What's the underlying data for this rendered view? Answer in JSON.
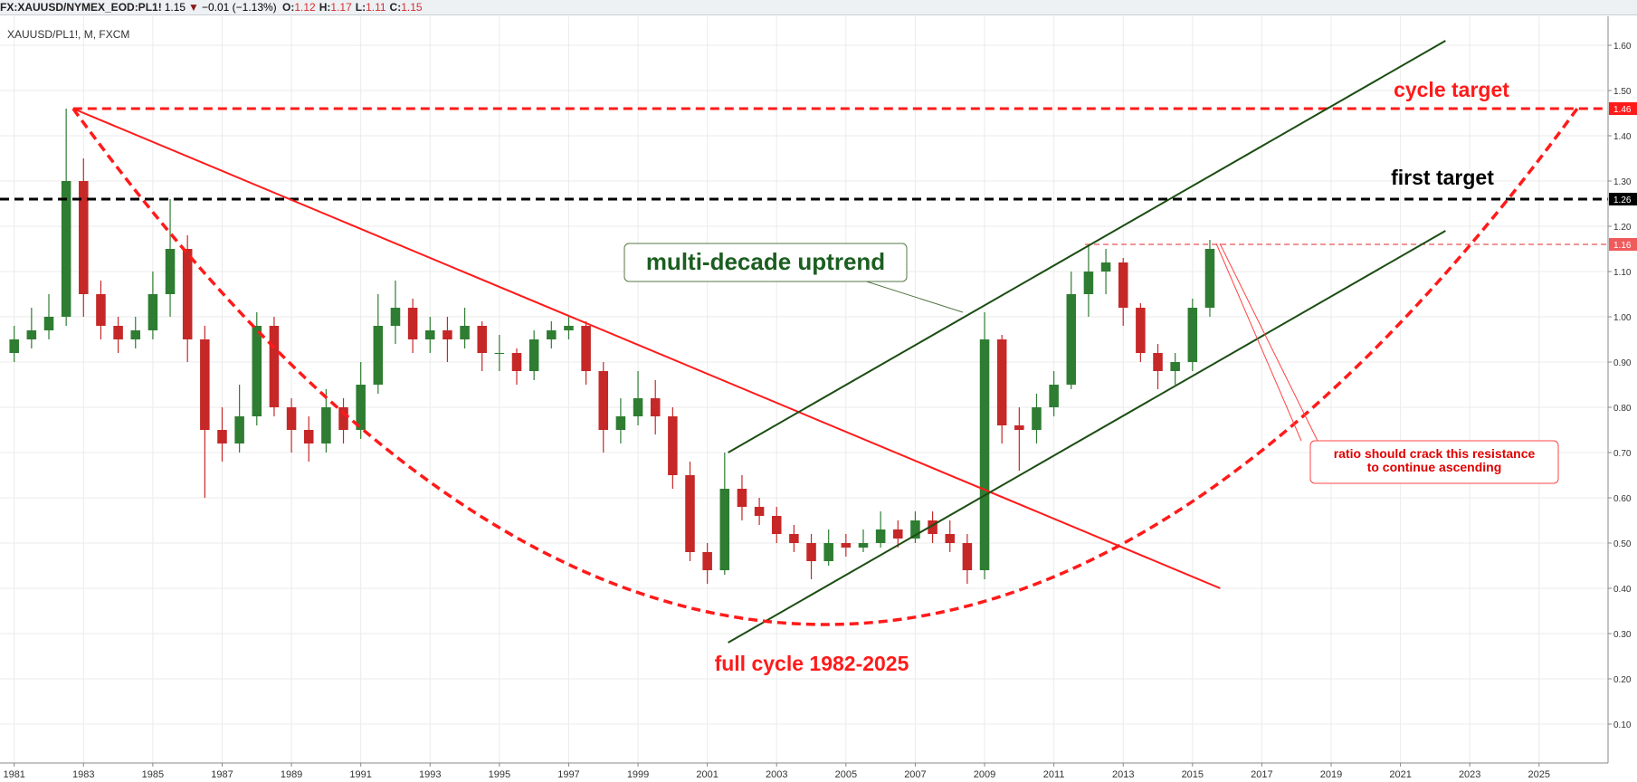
{
  "header": {
    "symbol": "FX:XAUUSD/NYMEX_EOD:PL1!",
    "last": 1.15,
    "change": "−0.01 (−1.13%)",
    "ohlc": [
      {
        "key": "O:",
        "value": 1.12
      },
      {
        "key": "H:",
        "value": 1.17
      },
      {
        "key": "L:",
        "value": 1.11
      },
      {
        "key": "C:",
        "value": 1.15
      }
    ]
  },
  "chart_data": {
    "type": "candlestick",
    "subtitle": "XAUUSD/PL1!, M, FXCM",
    "xlim": [
      1980.59,
      2026.99
    ],
    "ylim": [
      0.014,
      1.664
    ],
    "xticks": [
      1981,
      1983,
      1985,
      1987,
      1989,
      1991,
      1993,
      1995,
      1997,
      1999,
      2001,
      2003,
      2005,
      2007,
      2009,
      2011,
      2013,
      2015,
      2017,
      2019,
      2021,
      2023,
      2025
    ],
    "yticks": [
      {
        "value": 0.1,
        "label": "0.10"
      },
      {
        "value": 0.2,
        "label": "0.20"
      },
      {
        "value": 0.3,
        "label": "0.30"
      },
      {
        "value": 0.4,
        "label": "0.40"
      },
      {
        "value": 0.5,
        "label": "0.50"
      },
      {
        "value": 0.6,
        "label": "0.60"
      },
      {
        "value": 0.7,
        "label": "0.70"
      },
      {
        "value": 0.8,
        "label": "0.80"
      },
      {
        "value": 0.9,
        "label": "0.90"
      },
      {
        "value": 1.0,
        "label": "1.00"
      },
      {
        "value": 1.1,
        "label": "1.10"
      },
      {
        "value": 1.2,
        "label": "1.20"
      },
      {
        "value": 1.3,
        "label": "1.30"
      },
      {
        "value": 1.4,
        "label": "1.40"
      },
      {
        "value": 1.5,
        "label": "1.50"
      },
      {
        "value": 1.6,
        "label": "1.60"
      }
    ],
    "grid": true,
    "up_color": "#2e7d32",
    "down_color": "#c62828",
    "x": [
      1981.0,
      1981.5,
      1982.0,
      1982.5,
      1983.0,
      1983.5,
      1984.0,
      1984.5,
      1985.0,
      1985.5,
      1986.0,
      1986.5,
      1987.0,
      1987.5,
      1988.0,
      1988.5,
      1989.0,
      1989.5,
      1990.0,
      1990.5,
      1991.0,
      1991.5,
      1992.0,
      1992.5,
      1993.0,
      1993.5,
      1994.0,
      1994.5,
      1995.0,
      1995.5,
      1996.0,
      1996.5,
      1997.0,
      1997.5,
      1998.0,
      1998.5,
      1999.0,
      1999.5,
      2000.0,
      2000.5,
      2001.0,
      2001.5,
      2002.0,
      2002.5,
      2003.0,
      2003.5,
      2004.0,
      2004.5,
      2005.0,
      2005.5,
      2006.0,
      2006.5,
      2007.0,
      2007.5,
      2008.0,
      2008.5,
      2009.0,
      2009.5,
      2010.0,
      2010.5,
      2011.0,
      2011.5,
      2012.0,
      2012.5,
      2013.0,
      2013.5,
      2014.0,
      2014.5,
      2015.0,
      2015.5
    ],
    "open": [
      0.92,
      0.95,
      0.97,
      1.0,
      1.3,
      1.05,
      0.98,
      0.95,
      0.97,
      1.05,
      1.15,
      0.95,
      0.75,
      0.72,
      0.78,
      0.98,
      0.8,
      0.75,
      0.72,
      0.8,
      0.75,
      0.85,
      0.98,
      1.02,
      0.95,
      0.97,
      0.95,
      0.98,
      0.92,
      0.92,
      0.88,
      0.95,
      0.97,
      0.98,
      0.88,
      0.75,
      0.78,
      0.82,
      0.78,
      0.65,
      0.48,
      0.44,
      0.62,
      0.58,
      0.56,
      0.52,
      0.5,
      0.46,
      0.5,
      0.49,
      0.5,
      0.53,
      0.51,
      0.55,
      0.52,
      0.5,
      0.44,
      0.95,
      0.76,
      0.75,
      0.8,
      0.85,
      1.05,
      1.1,
      1.12,
      1.02,
      0.92,
      0.88,
      0.9,
      1.02
    ],
    "high": [
      0.98,
      1.02,
      1.05,
      1.46,
      1.35,
      1.08,
      1.0,
      1.0,
      1.1,
      1.26,
      1.18,
      0.98,
      0.8,
      0.85,
      1.01,
      1.0,
      0.82,
      0.78,
      0.84,
      0.82,
      0.9,
      1.05,
      1.08,
      1.04,
      1.0,
      1.0,
      1.02,
      0.99,
      0.96,
      0.93,
      0.97,
      0.99,
      1.0,
      0.99,
      0.9,
      0.82,
      0.88,
      0.86,
      0.8,
      0.68,
      0.5,
      0.7,
      0.65,
      0.6,
      0.58,
      0.54,
      0.52,
      0.53,
      0.52,
      0.53,
      0.57,
      0.55,
      0.57,
      0.57,
      0.55,
      0.52,
      1.01,
      0.96,
      0.8,
      0.83,
      0.88,
      1.1,
      1.16,
      1.15,
      1.13,
      1.03,
      0.94,
      0.92,
      1.04,
      1.17
    ],
    "low": [
      0.9,
      0.93,
      0.95,
      0.98,
      1.0,
      0.95,
      0.92,
      0.93,
      0.95,
      1.0,
      0.9,
      0.6,
      0.68,
      0.7,
      0.76,
      0.78,
      0.7,
      0.68,
      0.7,
      0.72,
      0.73,
      0.83,
      0.94,
      0.92,
      0.92,
      0.9,
      0.93,
      0.88,
      0.88,
      0.85,
      0.86,
      0.93,
      0.95,
      0.85,
      0.7,
      0.72,
      0.76,
      0.74,
      0.62,
      0.46,
      0.41,
      0.43,
      0.55,
      0.54,
      0.5,
      0.48,
      0.42,
      0.45,
      0.47,
      0.48,
      0.49,
      0.49,
      0.5,
      0.5,
      0.48,
      0.41,
      0.42,
      0.72,
      0.66,
      0.72,
      0.78,
      0.84,
      1.0,
      1.05,
      0.98,
      0.9,
      0.84,
      0.85,
      0.88,
      1.0
    ],
    "close": [
      0.95,
      0.97,
      1.0,
      1.3,
      1.05,
      0.98,
      0.95,
      0.97,
      1.05,
      1.15,
      0.95,
      0.75,
      0.72,
      0.78,
      0.98,
      0.8,
      0.75,
      0.72,
      0.8,
      0.75,
      0.85,
      0.98,
      1.02,
      0.95,
      0.97,
      0.95,
      0.98,
      0.92,
      0.92,
      0.88,
      0.95,
      0.97,
      0.98,
      0.88,
      0.75,
      0.78,
      0.82,
      0.78,
      0.65,
      0.48,
      0.44,
      0.62,
      0.58,
      0.56,
      0.52,
      0.5,
      0.46,
      0.5,
      0.49,
      0.5,
      0.53,
      0.51,
      0.55,
      0.52,
      0.5,
      0.44,
      0.95,
      0.76,
      0.75,
      0.8,
      0.85,
      1.05,
      1.1,
      1.12,
      1.02,
      0.92,
      0.88,
      0.9,
      1.02,
      1.15
    ],
    "drawings": [
      {
        "kind": "hline",
        "from": 1982.7,
        "y": 1.46,
        "color": "#ff1a1a",
        "width": 3,
        "dashed": true,
        "badge": "#ff1a1a"
      },
      {
        "kind": "hline",
        "from": 1980.59,
        "y": 1.26,
        "color": "#000000",
        "width": 3,
        "dashed": true,
        "badge": "#000000"
      },
      {
        "kind": "hline",
        "from": 2011.9,
        "y": 1.16,
        "color": "#e85555",
        "width": 1.2,
        "dashed": true,
        "badge": "#ef5b5b"
      },
      {
        "kind": "segment",
        "points": [
          [
            1982.7,
            1.46
          ],
          [
            2015.8,
            0.4
          ]
        ],
        "color": "#ff1a1a",
        "width": 2
      },
      {
        "kind": "segment",
        "points": [
          [
            2001.6,
            0.7
          ],
          [
            2022.3,
            1.61
          ]
        ],
        "color": "#1b4d12",
        "width": 2
      },
      {
        "kind": "segment",
        "points": [
          [
            2001.6,
            0.28
          ],
          [
            2022.3,
            1.19
          ]
        ],
        "color": "#1b4d12",
        "width": 2
      },
      {
        "kind": "arc",
        "points": [
          [
            1982.7,
            1.46
          ],
          [
            2004.4,
            0.32
          ],
          [
            2026.1,
            1.46
          ]
        ],
        "color": "#ff1a1a",
        "width": 3.5,
        "dashed": true
      }
    ],
    "annotations": {
      "cycle_target": "cycle target",
      "first_target": "first target",
      "uptrend": "multi-decade uptrend",
      "full_cycle": "full cycle 1982-2025",
      "callout": [
        "ratio should crack this resistance",
        "to continue ascending"
      ]
    }
  }
}
